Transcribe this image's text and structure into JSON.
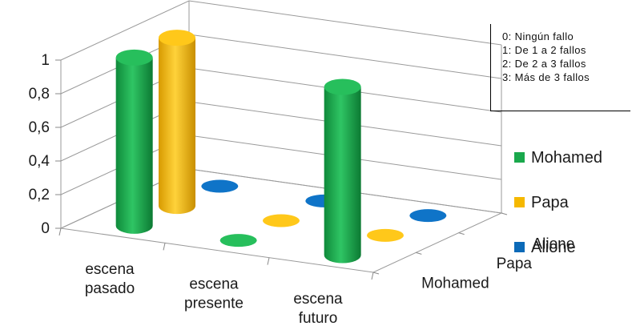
{
  "chart_data": {
    "type": "bar",
    "variant": "3d-cylinder",
    "categories": [
      "escena pasado",
      "escena presente",
      "escena futuro"
    ],
    "category_lines": [
      [
        "escena",
        "pasado"
      ],
      [
        "escena",
        "presente"
      ],
      [
        "escena",
        "futuro"
      ]
    ],
    "depth_labels": [
      "Mohamed",
      "Papa",
      "Alione"
    ],
    "series": [
      {
        "name": "Mohamed",
        "color": "#1aa84c",
        "values": [
          1,
          0,
          1
        ]
      },
      {
        "name": "Papa",
        "color": "#f5b800",
        "values": [
          1,
          0,
          0
        ]
      },
      {
        "name": "Alione",
        "color": "#0c6ab8",
        "values": [
          0,
          0,
          0
        ]
      }
    ],
    "y_ticks": [
      "0",
      "0,2",
      "0,4",
      "0,6",
      "0,8",
      "1"
    ],
    "ylim": [
      0,
      1
    ],
    "grid": true,
    "legend_position": "right"
  },
  "notes": [
    "0:  Ningún fallo",
    "1:  De 1 a 2 fallos",
    "2:  De 2  a 3 fallos",
    "3: Más de 3 fallos"
  ]
}
